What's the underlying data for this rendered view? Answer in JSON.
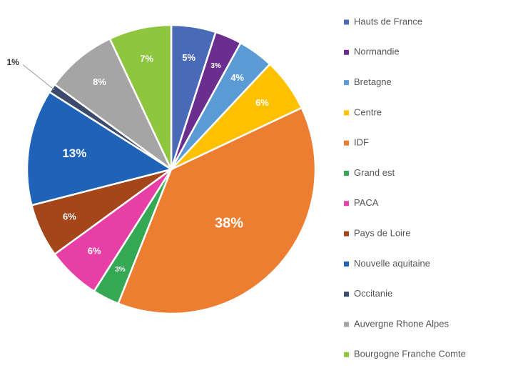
{
  "chart_data": {
    "type": "pie",
    "title": "",
    "legend_position": "right",
    "series": [
      {
        "slices": [
          {
            "label": "Hauts de France",
            "value": 5,
            "display": "5%",
            "color": "#4a6ab8"
          },
          {
            "label": "Normandie",
            "value": 3,
            "display": "3%",
            "color": "#6a2e8f"
          },
          {
            "label": "Bretagne",
            "value": 4,
            "display": "4%",
            "color": "#5b9bd5"
          },
          {
            "label": "Centre",
            "value": 6,
            "display": "6%",
            "color": "#ffc000"
          },
          {
            "label": "IDF",
            "value": 38,
            "display": "38%",
            "color": "#ed7d31"
          },
          {
            "label": "Grand est",
            "value": 3,
            "display": "3%",
            "color": "#34a853"
          },
          {
            "label": "PACA",
            "value": 6,
            "display": "6%",
            "color": "#e73fa5"
          },
          {
            "label": "Pays de Loire",
            "value": 6,
            "display": "6%",
            "color": "#a5461a"
          },
          {
            "label": "Nouvelle aquitaine",
            "value": 13,
            "display": "13%",
            "color": "#1f63b8"
          },
          {
            "label": "Occitanie",
            "value": 1,
            "display": "1%",
            "color": "#3c4a6b"
          },
          {
            "label": "Auvergne Rhone Alpes",
            "value": 8,
            "display": "8%",
            "color": "#a5a5a5"
          },
          {
            "label": "Bourgogne Franche Comte",
            "value": 7,
            "display": "7%",
            "color": "#8ec63f"
          }
        ]
      }
    ]
  }
}
